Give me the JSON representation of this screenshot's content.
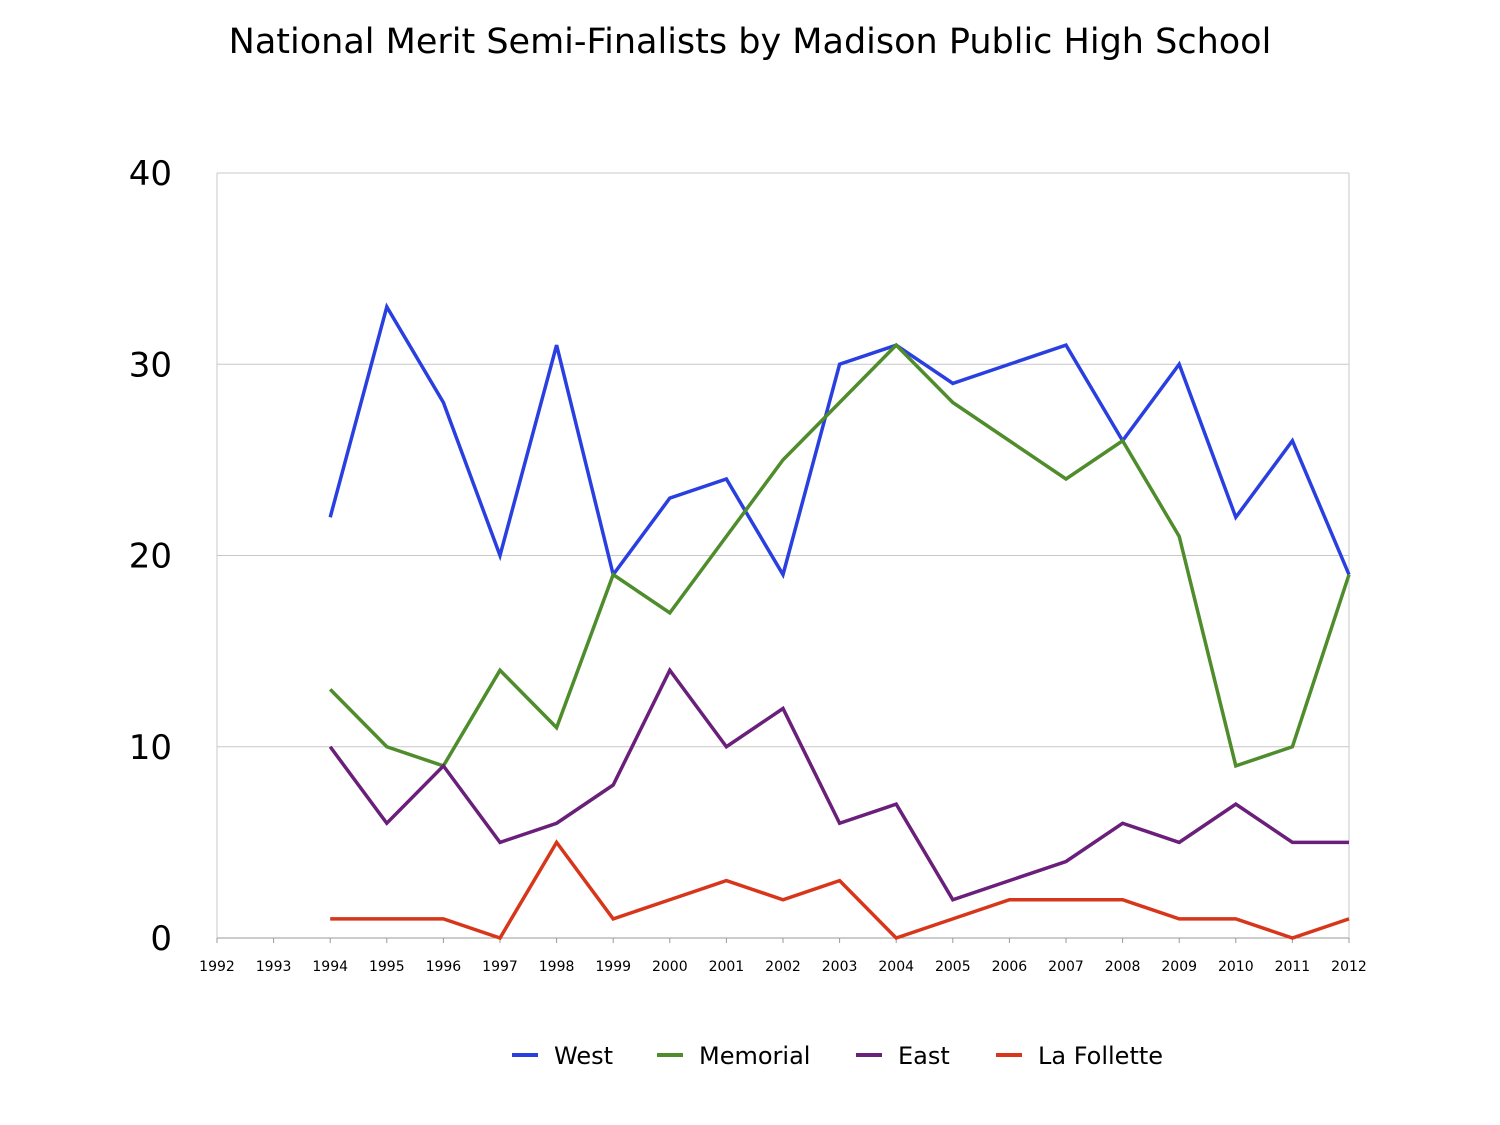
{
  "chart_data": {
    "type": "line",
    "title": "National Merit Semi-Finalists by Madison Public High School",
    "xlabel": "",
    "ylabel": "",
    "x": [
      "1992",
      "1993",
      "1994",
      "1995",
      "1996",
      "1997",
      "1998",
      "1999",
      "2000",
      "2001",
      "2002",
      "2003",
      "2004",
      "2005",
      "2006",
      "2007",
      "2008",
      "2009",
      "2010",
      "2011",
      "2012"
    ],
    "ylim": [
      0,
      40
    ],
    "yticks": [
      "0",
      "10",
      "20",
      "30",
      "40"
    ],
    "grid": true,
    "legend_position": "bottom",
    "series": [
      {
        "name": "West",
        "color": "#2a3fe0",
        "values": [
          null,
          null,
          22,
          33,
          28,
          20,
          31,
          19,
          23,
          24,
          19,
          30,
          31,
          29,
          30,
          31,
          26,
          30,
          22,
          26,
          19
        ]
      },
      {
        "name": "Memorial",
        "color": "#4e8c2c",
        "values": [
          null,
          null,
          13,
          10,
          9,
          14,
          11,
          19,
          17,
          21,
          25,
          28,
          31,
          28,
          26,
          24,
          26,
          21,
          9,
          10,
          19
        ]
      },
      {
        "name": "East",
        "color": "#6a1f7a",
        "values": [
          null,
          null,
          10,
          6,
          9,
          5,
          6,
          8,
          14,
          10,
          12,
          6,
          7,
          2,
          3,
          4,
          6,
          5,
          7,
          5,
          5
        ]
      },
      {
        "name": "La Follette",
        "color": "#d8361a",
        "values": [
          null,
          null,
          1,
          1,
          1,
          0,
          5,
          1,
          2,
          3,
          2,
          3,
          0,
          1,
          2,
          2,
          2,
          1,
          1,
          0,
          1
        ]
      }
    ]
  }
}
